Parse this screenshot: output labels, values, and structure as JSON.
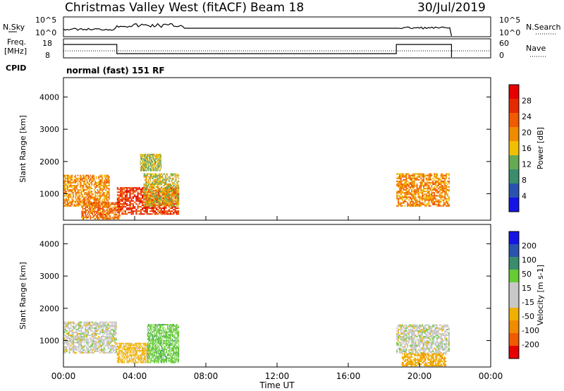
{
  "header": {
    "station": "Christmas Valley West (fitACF)",
    "beam": "Beam 18",
    "date": "30/Jul/2019"
  },
  "strips": {
    "nsky_label": "N.Sky",
    "nsky_ticks": [
      "10^5",
      "10^0"
    ],
    "nsearch_label": "N.Search",
    "nsearch_ticks": [
      "10^5",
      "10^0"
    ],
    "freq_label": "Freq.",
    "freq_unit": "[MHz]",
    "freq_ticks": [
      "18",
      "8"
    ],
    "nave_label": "Nave",
    "nave_ticks": [
      "60",
      "0"
    ],
    "cpid_label": "CPID",
    "cpid_text": "normal (fast) 151 RF"
  },
  "colors": {
    "power_scale": [
      "#1414e6",
      "#2a53b0",
      "#3a8d6c",
      "#66aa55",
      "#f0c000",
      "#f08a00",
      "#f05a00",
      "#e62a00",
      "#e60000"
    ],
    "velocity_scale": [
      "#e60000",
      "#f05a00",
      "#f08a00",
      "#f0b000",
      "#c8c8c8",
      "#c8c8c8",
      "#66cc33",
      "#3a8d6c",
      "#2a53b0",
      "#1414e6"
    ]
  },
  "chart_data": [
    {
      "type": "heatmap",
      "quantity": "power",
      "ylabel": "Slant Range [km]",
      "yticks": [
        1000,
        2000,
        3000,
        4000
      ],
      "ylim": [
        180,
        4600
      ],
      "xlim": [
        0,
        24
      ],
      "colorbar": {
        "label": "Power [dB]",
        "ticks": [
          "4",
          "8",
          "12",
          "16",
          "20",
          "24",
          "28"
        ],
        "range": [
          0,
          32
        ]
      },
      "regions": [
        {
          "t0": 0.0,
          "t1": 2.6,
          "r0": 600,
          "r1": 1550,
          "value": 20
        },
        {
          "t0": 1.0,
          "t1": 3.2,
          "r0": 200,
          "r1": 700,
          "value": 22
        },
        {
          "t0": 3.0,
          "t1": 6.5,
          "r0": 350,
          "r1": 1200,
          "value": 26
        },
        {
          "t0": 4.5,
          "t1": 6.5,
          "r0": 600,
          "r1": 1600,
          "value": 16
        },
        {
          "t0": 4.3,
          "t1": 5.5,
          "r0": 1700,
          "r1": 2200,
          "value": 14
        },
        {
          "t0": 18.7,
          "t1": 21.7,
          "r0": 600,
          "r1": 1600,
          "value": 20
        }
      ]
    },
    {
      "type": "heatmap",
      "quantity": "velocity",
      "ylabel": "Slant Range [km]",
      "yticks": [
        1000,
        2000,
        3000,
        4000
      ],
      "ylim": [
        180,
        4600
      ],
      "xlim": [
        0,
        24
      ],
      "colorbar": {
        "label": "Velocity [m s-1]",
        "ticks": [
          "200",
          "100",
          "50",
          "15",
          "-15",
          "-50",
          "-100",
          "-200"
        ]
      },
      "regions": [
        {
          "t0": 0.0,
          "t1": 3.0,
          "r0": 600,
          "r1": 1550,
          "value": 0
        },
        {
          "t0": 3.0,
          "t1": 4.8,
          "r0": 300,
          "r1": 900,
          "value": -30
        },
        {
          "t0": 4.7,
          "t1": 6.5,
          "r0": 300,
          "r1": 1500,
          "value": 35
        },
        {
          "t0": 18.7,
          "t1": 21.7,
          "r0": 600,
          "r1": 1500,
          "value": 0
        },
        {
          "t0": 19.0,
          "t1": 21.5,
          "r0": 200,
          "r1": 600,
          "value": -40
        }
      ]
    }
  ],
  "xaxis": {
    "ticks": [
      "00:00",
      "04:00",
      "08:00",
      "12:00",
      "16:00",
      "20:00",
      "00:00"
    ],
    "label": "Time UT"
  }
}
